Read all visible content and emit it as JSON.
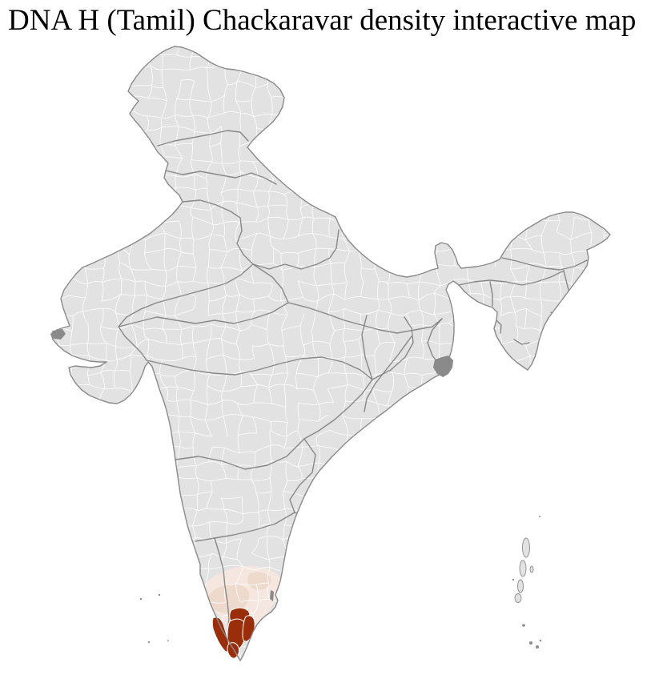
{
  "page": {
    "title": "DNA H (Tamil) Chackaravar density interactive map"
  },
  "map": {
    "colors": {
      "background": "#ffffff",
      "base-fill": "#e2e2e2",
      "district-border": "#ffffff",
      "state-border": "#838383",
      "coast-border": "#8a8a8a",
      "density-high": "#9a2d0a",
      "density-medium": "#eedacd",
      "density-low": "#f5e7e0",
      "urban-patch": "#8a8a8a"
    }
  }
}
